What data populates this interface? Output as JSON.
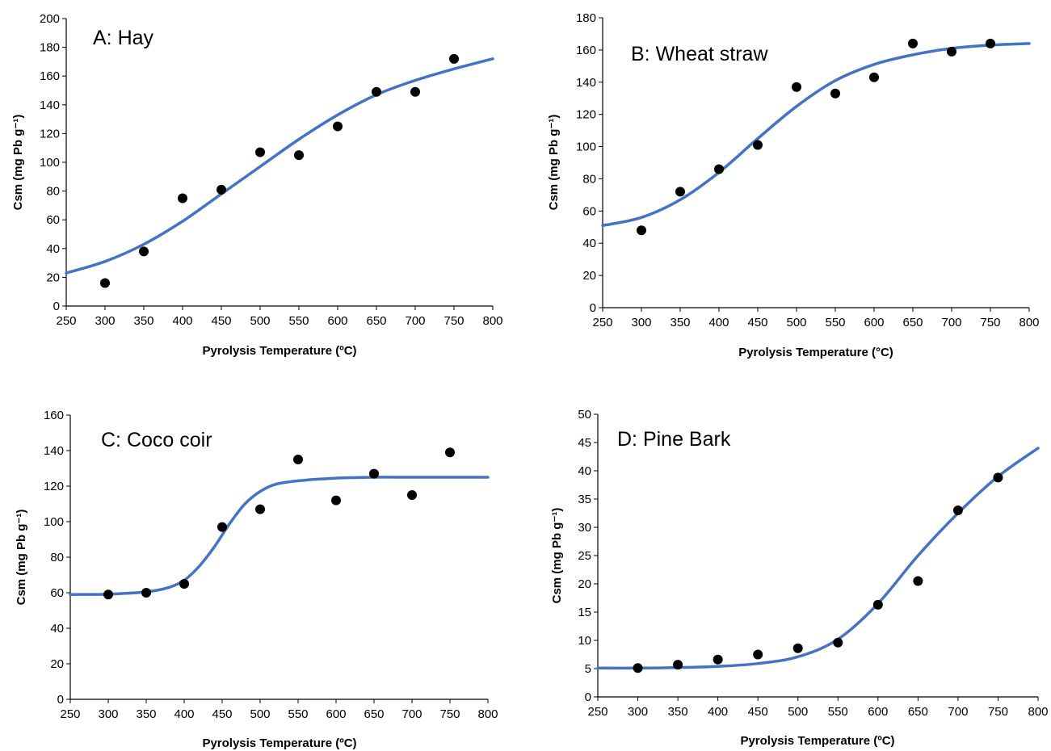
{
  "chart_data": [
    {
      "type": "scatter",
      "title": "A: Hay",
      "xlabel": "Pyrolysis Temperature (ºC)",
      "ylabel": "Csm (mg Pb g⁻¹)",
      "xlim": [
        250,
        800
      ],
      "ylim": [
        0,
        200
      ],
      "xticks": [
        250,
        300,
        350,
        400,
        450,
        500,
        550,
        600,
        650,
        700,
        750,
        800
      ],
      "yticks": [
        0,
        20,
        40,
        60,
        80,
        100,
        120,
        140,
        160,
        180,
        200
      ],
      "points": {
        "x": [
          300,
          350,
          400,
          450,
          500,
          550,
          600,
          650,
          700,
          750
        ],
        "y": [
          16,
          38,
          75,
          81,
          107,
          105,
          125,
          149,
          149,
          172
        ]
      },
      "fit": {
        "x": [
          250,
          300,
          350,
          400,
          450,
          500,
          550,
          600,
          650,
          700,
          750,
          800
        ],
        "y": [
          23,
          31,
          43,
          59,
          78,
          97,
          116,
          133,
          147,
          157,
          165,
          172
        ]
      },
      "fit_color": "#4472C4",
      "point_color": "#000000"
    },
    {
      "type": "scatter",
      "title": "B: Wheat straw",
      "xlabel": "Pyrolysis Temperature (°C)",
      "ylabel": "Csm (mg Pb g⁻¹)",
      "xlim": [
        250,
        800
      ],
      "ylim": [
        0,
        180
      ],
      "xticks": [
        250,
        300,
        350,
        400,
        450,
        500,
        550,
        600,
        650,
        700,
        750,
        800
      ],
      "yticks": [
        0,
        20,
        40,
        60,
        80,
        100,
        120,
        140,
        160,
        180
      ],
      "points": {
        "x": [
          300,
          350,
          400,
          450,
          500,
          550,
          600,
          650,
          700,
          750
        ],
        "y": [
          48,
          72,
          86,
          101,
          137,
          133,
          143,
          164,
          159,
          164
        ]
      },
      "fit": {
        "x": [
          250,
          300,
          350,
          400,
          450,
          500,
          550,
          600,
          650,
          700,
          750,
          800
        ],
        "y": [
          51,
          56,
          67,
          84,
          105,
          125,
          141,
          151,
          157,
          161,
          163,
          164
        ]
      },
      "fit_color": "#4472C4",
      "point_color": "#000000"
    },
    {
      "type": "scatter",
      "title": "C: Coco coir",
      "xlabel": "Pyrolysis Temperature (ºC)",
      "ylabel": "Csm (mg Pb g⁻¹)",
      "xlim": [
        250,
        800
      ],
      "ylim": [
        0,
        160
      ],
      "xticks": [
        250,
        300,
        350,
        400,
        450,
        500,
        550,
        600,
        650,
        700,
        750,
        800
      ],
      "yticks": [
        0,
        20,
        40,
        60,
        80,
        100,
        120,
        140,
        160
      ],
      "points": {
        "x": [
          300,
          350,
          400,
          450,
          500,
          550,
          600,
          650,
          700,
          750
        ],
        "y": [
          59,
          60,
          65,
          97,
          107,
          135,
          112,
          127,
          115,
          139
        ]
      },
      "fit": {
        "x": [
          250,
          300,
          350,
          380,
          400,
          420,
          440,
          460,
          480,
          500,
          520,
          550,
          600,
          650,
          700,
          750,
          800
        ],
        "y": [
          59,
          59.2,
          60.5,
          63,
          67,
          75,
          86,
          99,
          110,
          117,
          121,
          123,
          124.5,
          125,
          125,
          125,
          125
        ]
      },
      "fit_color": "#4472C4",
      "point_color": "#000000"
    },
    {
      "type": "scatter",
      "title": "D: Pine Bark",
      "xlabel": "Pyrolysis Temperature (ºC)",
      "ylabel": "Csm (mg Pb g⁻¹)",
      "xlim": [
        250,
        800
      ],
      "ylim": [
        0,
        50
      ],
      "xticks": [
        250,
        300,
        350,
        400,
        450,
        500,
        550,
        600,
        650,
        700,
        750,
        800
      ],
      "yticks": [
        0,
        5,
        10,
        15,
        20,
        25,
        30,
        35,
        40,
        45,
        50
      ],
      "points": {
        "x": [
          300,
          350,
          400,
          450,
          500,
          550,
          600,
          650,
          700,
          750
        ],
        "y": [
          5.1,
          5.7,
          6.6,
          7.5,
          8.6,
          9.6,
          16.3,
          20.5,
          33,
          38.8
        ]
      },
      "fit": {
        "x": [
          250,
          300,
          350,
          400,
          450,
          500,
          550,
          600,
          650,
          700,
          750,
          800
        ],
        "y": [
          5.1,
          5.1,
          5.2,
          5.4,
          5.9,
          7.1,
          10.2,
          16.5,
          25,
          32.5,
          39,
          44
        ]
      },
      "fit_color": "#4472C4",
      "point_color": "#000000"
    }
  ]
}
